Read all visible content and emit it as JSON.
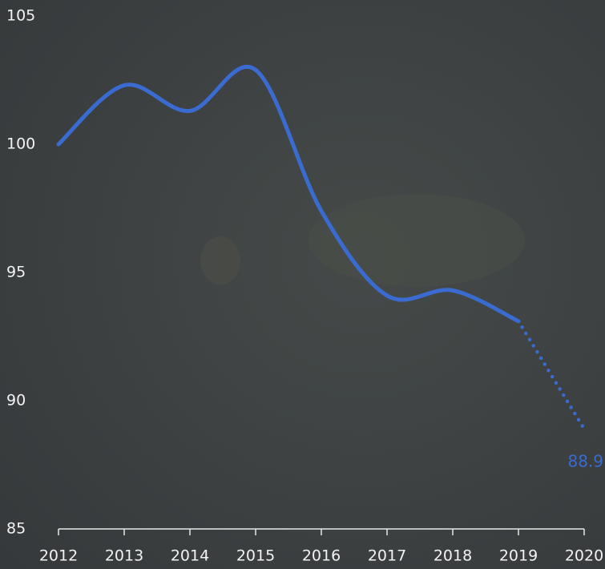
{
  "chart_data": {
    "type": "line",
    "x": [
      2012,
      2013,
      2014,
      2015,
      2016,
      2017,
      2018,
      2019,
      2020
    ],
    "xlim": [
      2012,
      2020
    ],
    "xticks": [
      2012,
      2013,
      2014,
      2015,
      2016,
      2017,
      2018,
      2019,
      2020
    ],
    "ylim": [
      85,
      105
    ],
    "yticks": [
      85,
      90,
      95,
      100,
      105
    ],
    "series": [
      {
        "color": "#3a6bd0",
        "style": "solid",
        "values": [
          100,
          102.3,
          101.3,
          102.9,
          97.4,
          94.1,
          94.3,
          93.1,
          null
        ]
      },
      {
        "color": "#3a6bd0",
        "style": "dotted",
        "values": [
          null,
          null,
          null,
          null,
          null,
          null,
          null,
          93.1,
          88.9
        ],
        "label_last": true
      }
    ]
  }
}
